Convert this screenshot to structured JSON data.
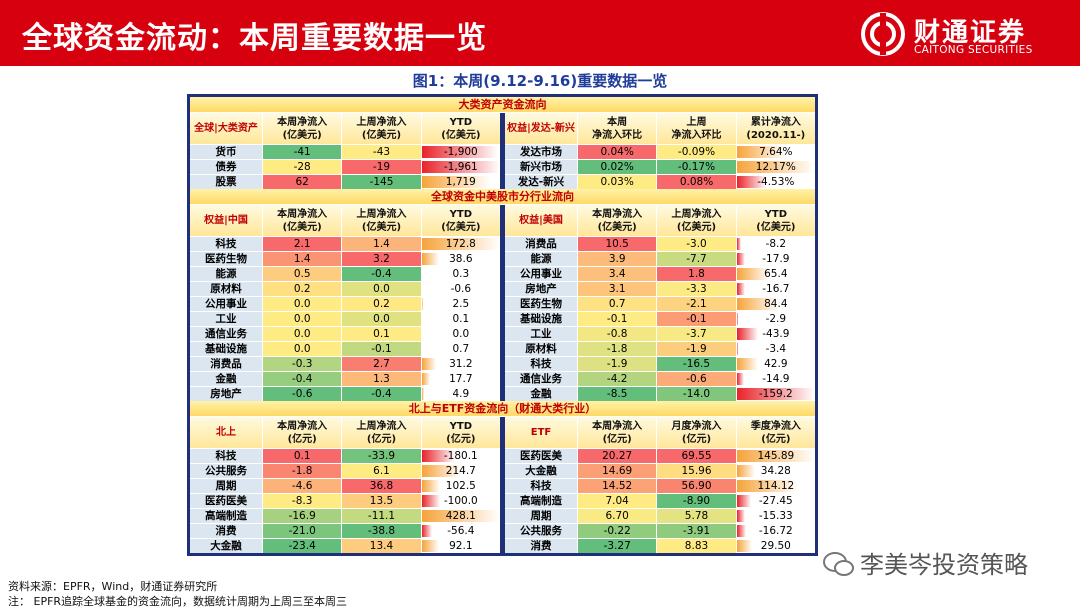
{
  "header": {
    "title": "全球资金流动：本周重要数据一览",
    "logo_name": "财通证券",
    "logo_en": "CAITONG SECURITIES"
  },
  "figure_title": "图1：本周(9.12-9.16)重要数据一览",
  "sections": [
    {
      "title": "大类资产资金流向",
      "left": {
        "headers": [
          "全球|大类资产",
          "本周净流入\n(亿美元)",
          "上周净流入\n(亿美元)",
          "YTD\n(亿美元)"
        ],
        "rows": [
          [
            "货币",
            "-41",
            "-43",
            "-1,900"
          ],
          [
            "债券",
            "-28",
            "-19",
            "-1,961"
          ],
          [
            "股票",
            "62",
            "-145",
            "1,719"
          ]
        ]
      },
      "right": {
        "headers": [
          "权益|发达-新兴",
          "本周\n净流入环比",
          "上周\n净流入环比",
          "累计净流入\n(2020.11-)"
        ],
        "rows": [
          [
            "发达市场",
            "0.04%",
            "-0.09%",
            "7.64%"
          ],
          [
            "新兴市场",
            "0.02%",
            "-0.17%",
            "12.17%"
          ],
          [
            "发达-新兴",
            "0.03%",
            "0.08%",
            "-4.53%"
          ]
        ]
      }
    },
    {
      "title": "全球资金中美股市分行业流向",
      "left": {
        "headers": [
          "权益|中国",
          "本周净流入\n(亿美元)",
          "上周净流入\n(亿美元)",
          "YTD\n(亿美元)"
        ],
        "rows": [
          [
            "科技",
            "2.1",
            "1.4",
            "172.8"
          ],
          [
            "医药生物",
            "1.4",
            "3.2",
            "38.6"
          ],
          [
            "能源",
            "0.5",
            "-0.4",
            "0.3"
          ],
          [
            "原材料",
            "0.2",
            "0.0",
            "-0.6"
          ],
          [
            "公用事业",
            "0.0",
            "0.2",
            "2.5"
          ],
          [
            "工业",
            "0.0",
            "0.0",
            "0.1"
          ],
          [
            "通信业务",
            "0.0",
            "0.1",
            "0.0"
          ],
          [
            "基础设施",
            "0.0",
            "-0.1",
            "0.7"
          ],
          [
            "消费品",
            "-0.3",
            "2.7",
            "31.2"
          ],
          [
            "金融",
            "-0.4",
            "1.3",
            "17.7"
          ],
          [
            "房地产",
            "-0.6",
            "-0.4",
            "4.9"
          ]
        ]
      },
      "right": {
        "headers": [
          "权益|美国",
          "本周净流入\n(亿美元)",
          "上周净流入\n(亿美元)",
          "YTD\n(亿美元)"
        ],
        "rows": [
          [
            "消费品",
            "10.5",
            "-3.0",
            "-8.2"
          ],
          [
            "能源",
            "3.9",
            "-7.7",
            "-17.9"
          ],
          [
            "公用事业",
            "3.4",
            "1.8",
            "65.4"
          ],
          [
            "房地产",
            "3.1",
            "-3.3",
            "-16.7"
          ],
          [
            "医药生物",
            "0.7",
            "-2.1",
            "84.4"
          ],
          [
            "基础设施",
            "-0.1",
            "-0.1",
            "-2.9"
          ],
          [
            "工业",
            "-0.8",
            "-3.7",
            "-43.9"
          ],
          [
            "原材料",
            "-1.8",
            "-1.9",
            "-3.4"
          ],
          [
            "科技",
            "-1.9",
            "-16.5",
            "42.9"
          ],
          [
            "通信业务",
            "-4.2",
            "-0.6",
            "-14.9"
          ],
          [
            "金融",
            "-8.5",
            "-14.0",
            "-159.2"
          ]
        ]
      }
    },
    {
      "title": "北上与ETF资金流向（财通大类行业）",
      "left": {
        "headers": [
          "北上",
          "本周净流入\n(亿元)",
          "上周净流入\n(亿元)",
          "YTD\n(亿元)"
        ],
        "rows": [
          [
            "科技",
            "0.1",
            "-33.9",
            "-180.1"
          ],
          [
            "公共服务",
            "-1.8",
            "6.1",
            "214.7"
          ],
          [
            "周期",
            "-4.6",
            "36.8",
            "102.5"
          ],
          [
            "医药医美",
            "-8.3",
            "13.5",
            "-100.0"
          ],
          [
            "高端制造",
            "-16.9",
            "-11.1",
            "428.1"
          ],
          [
            "消费",
            "-21.0",
            "-38.8",
            "-56.4"
          ],
          [
            "大金融",
            "-23.4",
            "13.4",
            "92.1"
          ]
        ]
      },
      "right": {
        "headers": [
          "ETF",
          "本周净流入\n(亿元)",
          "月度净流入\n(亿元)",
          "季度净流入\n(亿元)"
        ],
        "rows": [
          [
            "医药医美",
            "20.27",
            "69.55",
            "145.89"
          ],
          [
            "大金融",
            "14.69",
            "15.96",
            "34.28"
          ],
          [
            "科技",
            "14.52",
            "56.90",
            "114.12"
          ],
          [
            "高端制造",
            "7.04",
            "-8.90",
            "-27.45"
          ],
          [
            "周期",
            "6.70",
            "5.78",
            "-15.33"
          ],
          [
            "公共服务",
            "-0.22",
            "-3.91",
            "-16.72"
          ],
          [
            "消费",
            "-3.27",
            "8.83",
            "29.50"
          ]
        ]
      }
    }
  ],
  "notes": [
    "资料来源：EPFR，Wind，财通证券研究所",
    "注： EPFR追踪全球基金的资金流向，数据统计周期为上周三至本周三"
  ],
  "watermark": "李美岑投资策略"
}
